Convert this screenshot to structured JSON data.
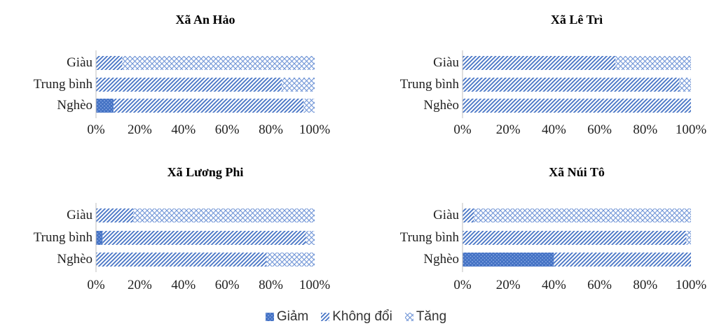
{
  "chart_data": [
    {
      "type": "bar",
      "title": "Xã An Hảo",
      "categories": [
        "Giàu",
        "Trung bình",
        "Nghèo"
      ],
      "series": [
        {
          "name": "Giảm",
          "values": [
            0,
            0,
            8
          ]
        },
        {
          "name": "Không đổi",
          "values": [
            12,
            85,
            87
          ]
        },
        {
          "name": "Tăng",
          "values": [
            88,
            15,
            5
          ]
        }
      ],
      "ticks": [
        "0%",
        "20%",
        "40%",
        "60%",
        "80%",
        "100%"
      ],
      "xlim": [
        0,
        100
      ]
    },
    {
      "type": "bar",
      "title": "Xã Lê Trì",
      "categories": [
        "Giàu",
        "Trung bình",
        "Nghèo"
      ],
      "series": [
        {
          "name": "Giảm",
          "values": [
            0,
            0,
            0
          ]
        },
        {
          "name": "Không đổi",
          "values": [
            67,
            95,
            100
          ]
        },
        {
          "name": "Tăng",
          "values": [
            33,
            5,
            0
          ]
        }
      ],
      "ticks": [
        "0%",
        "20%",
        "40%",
        "60%",
        "80%",
        "100%"
      ],
      "xlim": [
        0,
        100
      ]
    },
    {
      "type": "bar",
      "title": "Xã Lương Phi",
      "categories": [
        "Giàu",
        "Trung bình",
        "Nghèo"
      ],
      "series": [
        {
          "name": "Giảm",
          "values": [
            0,
            3,
            0
          ]
        },
        {
          "name": "Không đổi",
          "values": [
            17,
            93,
            78
          ]
        },
        {
          "name": "Tăng",
          "values": [
            83,
            4,
            22
          ]
        }
      ],
      "ticks": [
        "0%",
        "20%",
        "40%",
        "60%",
        "80%",
        "100%"
      ],
      "xlim": [
        0,
        100
      ]
    },
    {
      "type": "bar",
      "title": "Xã Núi Tô",
      "categories": [
        "Giàu",
        "Trung bình",
        "Nghèo"
      ],
      "series": [
        {
          "name": "Giảm",
          "values": [
            0,
            0,
            40
          ]
        },
        {
          "name": "Không đổi",
          "values": [
            5,
            98,
            60
          ]
        },
        {
          "name": "Tăng",
          "values": [
            95,
            2,
            0
          ]
        }
      ],
      "ticks": [
        "0%",
        "20%",
        "40%",
        "60%",
        "80%",
        "100%"
      ],
      "xlim": [
        0,
        100
      ]
    }
  ],
  "legend": [
    {
      "label": "Giảm",
      "color": "#4472c4",
      "pattern": "dots"
    },
    {
      "label": "Không đổi",
      "color": "#4472c4",
      "pattern": "diagonal"
    },
    {
      "label": "Tăng",
      "color": "#4472c4",
      "pattern": "crosshatch"
    }
  ]
}
